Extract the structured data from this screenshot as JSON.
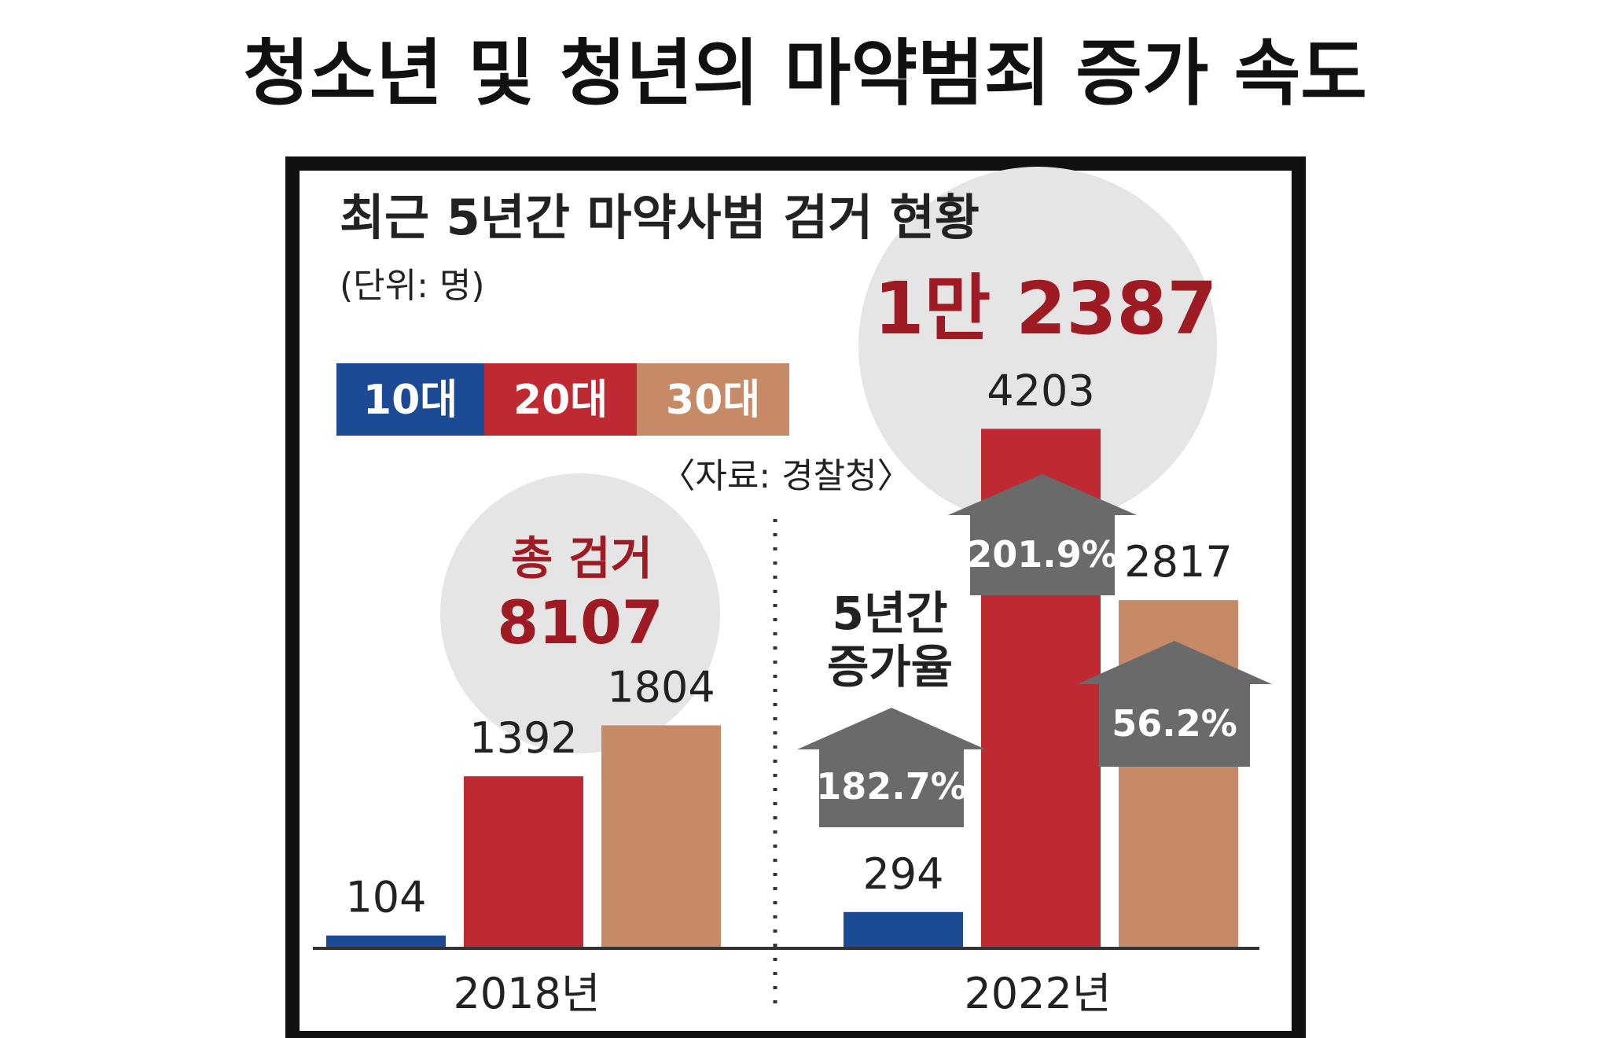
{
  "page_title": "청소년 및 청년의 마약범죄 증가 속도",
  "panel": {
    "title": "최근 5년간 마약사범 검거 현황",
    "unit": "(단위: 명)",
    "source": "〈자료: 경찰청〉"
  },
  "colors": {
    "teen": "#1c4a94",
    "twenties": "#be2932",
    "thirties": "#c68a67",
    "circle": "#e5e5e5",
    "arrow": "#6a6a6a",
    "total_text": "#9e1b24"
  },
  "chart_data": {
    "type": "bar",
    "categories": [
      "2018년",
      "2022년"
    ],
    "series": [
      {
        "name": "10대",
        "values": [
          104,
          294
        ]
      },
      {
        "name": "20대",
        "values": [
          1392,
          4203
        ]
      },
      {
        "name": "30대",
        "values": [
          1804,
          2817
        ]
      }
    ],
    "totals": [
      {
        "label": "총 검거",
        "value": "8107"
      },
      {
        "label": "",
        "value": "1만 2387"
      }
    ],
    "growth": {
      "title_line1": "5년간",
      "title_line2": "증가율",
      "values": [
        "182.7%",
        "201.9%",
        "56.2%"
      ]
    },
    "legend_position": "top-left"
  }
}
